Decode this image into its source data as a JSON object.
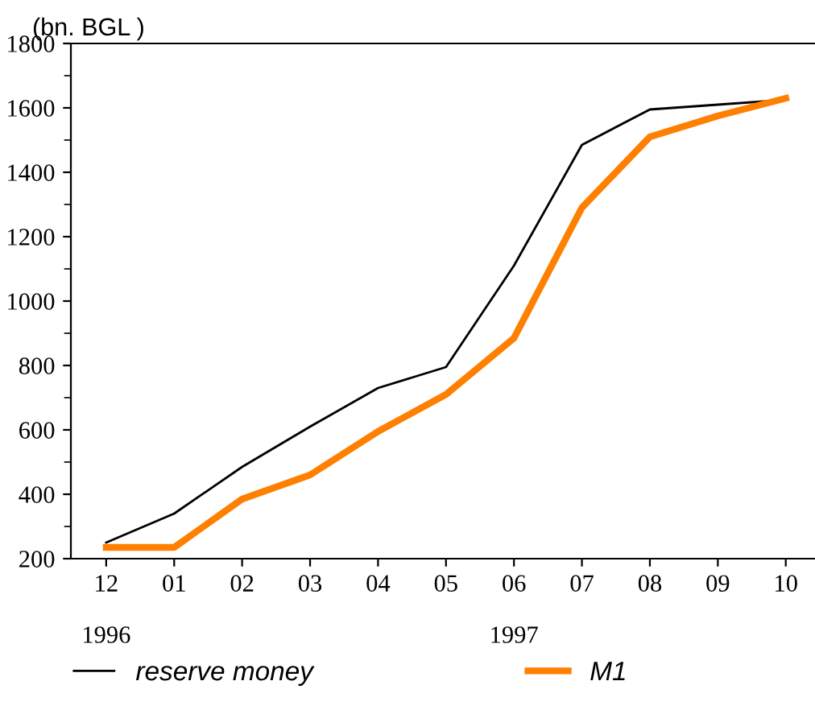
{
  "chart_data": {
    "type": "line",
    "ylabel": "(bn. BGL )",
    "categories": [
      "12\n\n1996",
      "01",
      "02",
      "03",
      "04",
      "05",
      "06\n\n1997",
      "07",
      "08",
      "09",
      "10"
    ],
    "series": [
      {
        "name": "reserve money",
        "color": "#000000",
        "values": [
          250,
          340,
          485,
          610,
          730,
          795,
          1110,
          1485,
          1595,
          1610,
          1625
        ]
      },
      {
        "name": "M1",
        "color": "#ff7f00",
        "values": [
          235,
          235,
          385,
          460,
          595,
          710,
          885,
          1290,
          1510,
          1575,
          1630
        ]
      }
    ],
    "ylim": [
      200,
      1800
    ],
    "yticks": [
      200,
      400,
      600,
      800,
      1000,
      1200,
      1400,
      1600,
      1800
    ],
    "grid": false,
    "legend": "bottom",
    "marker": "none",
    "line_style": "solid"
  }
}
